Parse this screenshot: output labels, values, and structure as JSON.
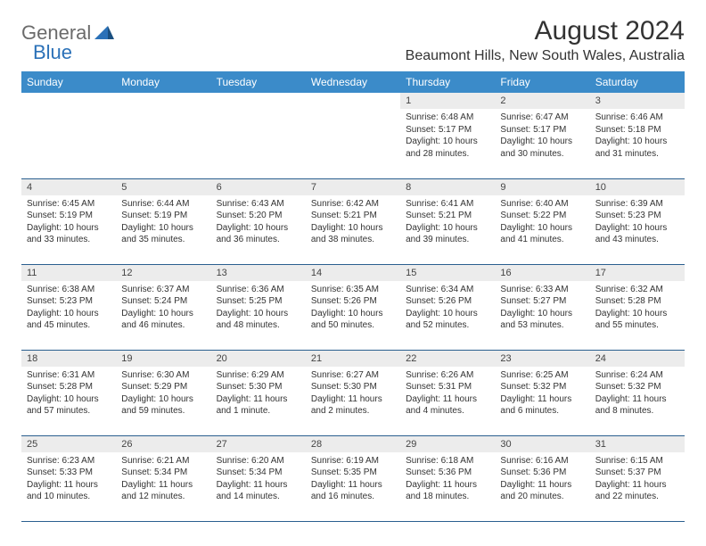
{
  "logo": {
    "part1": "General",
    "part2": "Blue"
  },
  "title": "August 2024",
  "location": "Beaumont Hills, New South Wales, Australia",
  "colors": {
    "header_bg": "#3b8bc9",
    "header_text": "#ffffff",
    "daynum_bg": "#ececec",
    "cell_border": "#2b5f8f",
    "logo_gray": "#6b6b6b",
    "logo_blue": "#2b71b8"
  },
  "weekdays": [
    "Sunday",
    "Monday",
    "Tuesday",
    "Wednesday",
    "Thursday",
    "Friday",
    "Saturday"
  ],
  "weeks": [
    [
      null,
      null,
      null,
      null,
      {
        "n": "1",
        "sr": "Sunrise: 6:48 AM",
        "ss": "Sunset: 5:17 PM",
        "dl": "Daylight: 10 hours and 28 minutes."
      },
      {
        "n": "2",
        "sr": "Sunrise: 6:47 AM",
        "ss": "Sunset: 5:17 PM",
        "dl": "Daylight: 10 hours and 30 minutes."
      },
      {
        "n": "3",
        "sr": "Sunrise: 6:46 AM",
        "ss": "Sunset: 5:18 PM",
        "dl": "Daylight: 10 hours and 31 minutes."
      }
    ],
    [
      {
        "n": "4",
        "sr": "Sunrise: 6:45 AM",
        "ss": "Sunset: 5:19 PM",
        "dl": "Daylight: 10 hours and 33 minutes."
      },
      {
        "n": "5",
        "sr": "Sunrise: 6:44 AM",
        "ss": "Sunset: 5:19 PM",
        "dl": "Daylight: 10 hours and 35 minutes."
      },
      {
        "n": "6",
        "sr": "Sunrise: 6:43 AM",
        "ss": "Sunset: 5:20 PM",
        "dl": "Daylight: 10 hours and 36 minutes."
      },
      {
        "n": "7",
        "sr": "Sunrise: 6:42 AM",
        "ss": "Sunset: 5:21 PM",
        "dl": "Daylight: 10 hours and 38 minutes."
      },
      {
        "n": "8",
        "sr": "Sunrise: 6:41 AM",
        "ss": "Sunset: 5:21 PM",
        "dl": "Daylight: 10 hours and 39 minutes."
      },
      {
        "n": "9",
        "sr": "Sunrise: 6:40 AM",
        "ss": "Sunset: 5:22 PM",
        "dl": "Daylight: 10 hours and 41 minutes."
      },
      {
        "n": "10",
        "sr": "Sunrise: 6:39 AM",
        "ss": "Sunset: 5:23 PM",
        "dl": "Daylight: 10 hours and 43 minutes."
      }
    ],
    [
      {
        "n": "11",
        "sr": "Sunrise: 6:38 AM",
        "ss": "Sunset: 5:23 PM",
        "dl": "Daylight: 10 hours and 45 minutes."
      },
      {
        "n": "12",
        "sr": "Sunrise: 6:37 AM",
        "ss": "Sunset: 5:24 PM",
        "dl": "Daylight: 10 hours and 46 minutes."
      },
      {
        "n": "13",
        "sr": "Sunrise: 6:36 AM",
        "ss": "Sunset: 5:25 PM",
        "dl": "Daylight: 10 hours and 48 minutes."
      },
      {
        "n": "14",
        "sr": "Sunrise: 6:35 AM",
        "ss": "Sunset: 5:26 PM",
        "dl": "Daylight: 10 hours and 50 minutes."
      },
      {
        "n": "15",
        "sr": "Sunrise: 6:34 AM",
        "ss": "Sunset: 5:26 PM",
        "dl": "Daylight: 10 hours and 52 minutes."
      },
      {
        "n": "16",
        "sr": "Sunrise: 6:33 AM",
        "ss": "Sunset: 5:27 PM",
        "dl": "Daylight: 10 hours and 53 minutes."
      },
      {
        "n": "17",
        "sr": "Sunrise: 6:32 AM",
        "ss": "Sunset: 5:28 PM",
        "dl": "Daylight: 10 hours and 55 minutes."
      }
    ],
    [
      {
        "n": "18",
        "sr": "Sunrise: 6:31 AM",
        "ss": "Sunset: 5:28 PM",
        "dl": "Daylight: 10 hours and 57 minutes."
      },
      {
        "n": "19",
        "sr": "Sunrise: 6:30 AM",
        "ss": "Sunset: 5:29 PM",
        "dl": "Daylight: 10 hours and 59 minutes."
      },
      {
        "n": "20",
        "sr": "Sunrise: 6:29 AM",
        "ss": "Sunset: 5:30 PM",
        "dl": "Daylight: 11 hours and 1 minute."
      },
      {
        "n": "21",
        "sr": "Sunrise: 6:27 AM",
        "ss": "Sunset: 5:30 PM",
        "dl": "Daylight: 11 hours and 2 minutes."
      },
      {
        "n": "22",
        "sr": "Sunrise: 6:26 AM",
        "ss": "Sunset: 5:31 PM",
        "dl": "Daylight: 11 hours and 4 minutes."
      },
      {
        "n": "23",
        "sr": "Sunrise: 6:25 AM",
        "ss": "Sunset: 5:32 PM",
        "dl": "Daylight: 11 hours and 6 minutes."
      },
      {
        "n": "24",
        "sr": "Sunrise: 6:24 AM",
        "ss": "Sunset: 5:32 PM",
        "dl": "Daylight: 11 hours and 8 minutes."
      }
    ],
    [
      {
        "n": "25",
        "sr": "Sunrise: 6:23 AM",
        "ss": "Sunset: 5:33 PM",
        "dl": "Daylight: 11 hours and 10 minutes."
      },
      {
        "n": "26",
        "sr": "Sunrise: 6:21 AM",
        "ss": "Sunset: 5:34 PM",
        "dl": "Daylight: 11 hours and 12 minutes."
      },
      {
        "n": "27",
        "sr": "Sunrise: 6:20 AM",
        "ss": "Sunset: 5:34 PM",
        "dl": "Daylight: 11 hours and 14 minutes."
      },
      {
        "n": "28",
        "sr": "Sunrise: 6:19 AM",
        "ss": "Sunset: 5:35 PM",
        "dl": "Daylight: 11 hours and 16 minutes."
      },
      {
        "n": "29",
        "sr": "Sunrise: 6:18 AM",
        "ss": "Sunset: 5:36 PM",
        "dl": "Daylight: 11 hours and 18 minutes."
      },
      {
        "n": "30",
        "sr": "Sunrise: 6:16 AM",
        "ss": "Sunset: 5:36 PM",
        "dl": "Daylight: 11 hours and 20 minutes."
      },
      {
        "n": "31",
        "sr": "Sunrise: 6:15 AM",
        "ss": "Sunset: 5:37 PM",
        "dl": "Daylight: 11 hours and 22 minutes."
      }
    ]
  ]
}
